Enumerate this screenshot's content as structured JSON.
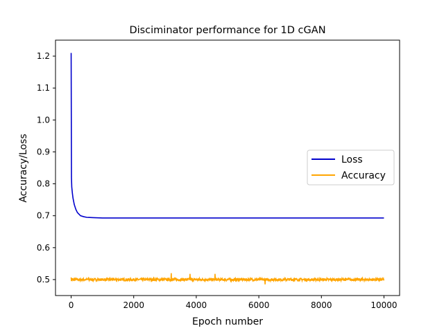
{
  "chart_data": {
    "type": "line",
    "title": "Disciminator performance for 1D cGAN",
    "xlabel": "Epoch number",
    "ylabel": "Accuracy/Loss",
    "xlim": [
      -500,
      10500
    ],
    "ylim": [
      0.45,
      1.25
    ],
    "xticks": [
      0,
      2000,
      4000,
      6000,
      8000,
      10000
    ],
    "yticks": [
      0.5,
      0.6,
      0.7,
      0.8,
      0.9,
      1.0,
      1.1,
      1.2
    ],
    "grid": false,
    "legend_position": "center-right",
    "series": [
      {
        "name": "Loss",
        "color": "#0000cc",
        "x": [
          0,
          10,
          20,
          40,
          60,
          80,
          100,
          150,
          200,
          250,
          300,
          400,
          500,
          700,
          1000,
          1500,
          2000,
          3000,
          4000,
          5000,
          6000,
          7000,
          8000,
          9000,
          10000
        ],
        "values": [
          1.21,
          0.82,
          0.79,
          0.77,
          0.755,
          0.745,
          0.735,
          0.72,
          0.71,
          0.705,
          0.7,
          0.697,
          0.695,
          0.694,
          0.693,
          0.693,
          0.693,
          0.693,
          0.693,
          0.693,
          0.693,
          0.693,
          0.693,
          0.693,
          0.693
        ]
      },
      {
        "name": "Accuracy",
        "color": "#ffa500",
        "x": [
          0,
          10000
        ],
        "values": [
          0.5,
          0.5
        ],
        "noise_band": 0.004,
        "notable_spikes": [
          {
            "x": 3200,
            "y": 0.52
          },
          {
            "x": 3800,
            "y": 0.518
          },
          {
            "x": 4600,
            "y": 0.518
          },
          {
            "x": 6200,
            "y": 0.485
          }
        ]
      }
    ]
  }
}
